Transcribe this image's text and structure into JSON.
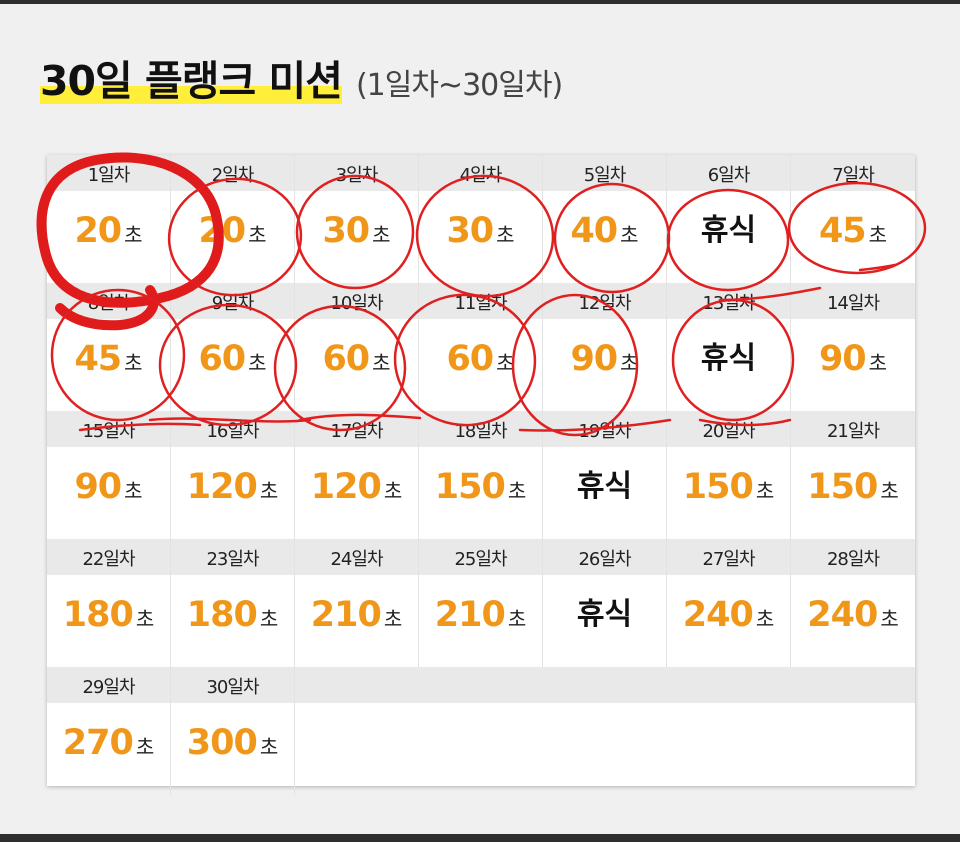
{
  "title": "30일 플랭크 미션",
  "subtitle": "(1일차~30일차)",
  "colors": {
    "accent_orange": "#f0971a",
    "highlight_yellow": "#ffee3a",
    "ink_red": "#e01b1b"
  },
  "days": [
    {
      "label": "1일차",
      "value": "20",
      "unit": "초"
    },
    {
      "label": "2일차",
      "value": "20",
      "unit": "초"
    },
    {
      "label": "3일차",
      "value": "30",
      "unit": "초"
    },
    {
      "label": "4일차",
      "value": "30",
      "unit": "초"
    },
    {
      "label": "5일차",
      "value": "40",
      "unit": "초"
    },
    {
      "label": "6일차",
      "rest": "휴식"
    },
    {
      "label": "7일차",
      "value": "45",
      "unit": "초"
    },
    {
      "label": "8일차",
      "value": "45",
      "unit": "초"
    },
    {
      "label": "9일차",
      "value": "60",
      "unit": "초"
    },
    {
      "label": "10일차",
      "value": "60",
      "unit": "초"
    },
    {
      "label": "11일차",
      "value": "60",
      "unit": "초"
    },
    {
      "label": "12일차",
      "value": "90",
      "unit": "초"
    },
    {
      "label": "13일차",
      "rest": "휴식"
    },
    {
      "label": "14일차",
      "value": "90",
      "unit": "초"
    },
    {
      "label": "15일차",
      "value": "90",
      "unit": "초"
    },
    {
      "label": "16일차",
      "value": "120",
      "unit": "초"
    },
    {
      "label": "17일차",
      "value": "120",
      "unit": "초"
    },
    {
      "label": "18일차",
      "value": "150",
      "unit": "초"
    },
    {
      "label": "19일차",
      "rest": "휴식"
    },
    {
      "label": "20일차",
      "value": "150",
      "unit": "초"
    },
    {
      "label": "21일차",
      "value": "150",
      "unit": "초"
    },
    {
      "label": "22일차",
      "value": "180",
      "unit": "초"
    },
    {
      "label": "23일차",
      "value": "180",
      "unit": "초"
    },
    {
      "label": "24일차",
      "value": "210",
      "unit": "초"
    },
    {
      "label": "25일차",
      "value": "210",
      "unit": "초"
    },
    {
      "label": "26일차",
      "rest": "휴식"
    },
    {
      "label": "27일차",
      "value": "240",
      "unit": "초"
    },
    {
      "label": "28일차",
      "value": "240",
      "unit": "초"
    },
    {
      "label": "29일차",
      "value": "270",
      "unit": "초"
    },
    {
      "label": "30일차",
      "value": "300",
      "unit": "초"
    }
  ]
}
